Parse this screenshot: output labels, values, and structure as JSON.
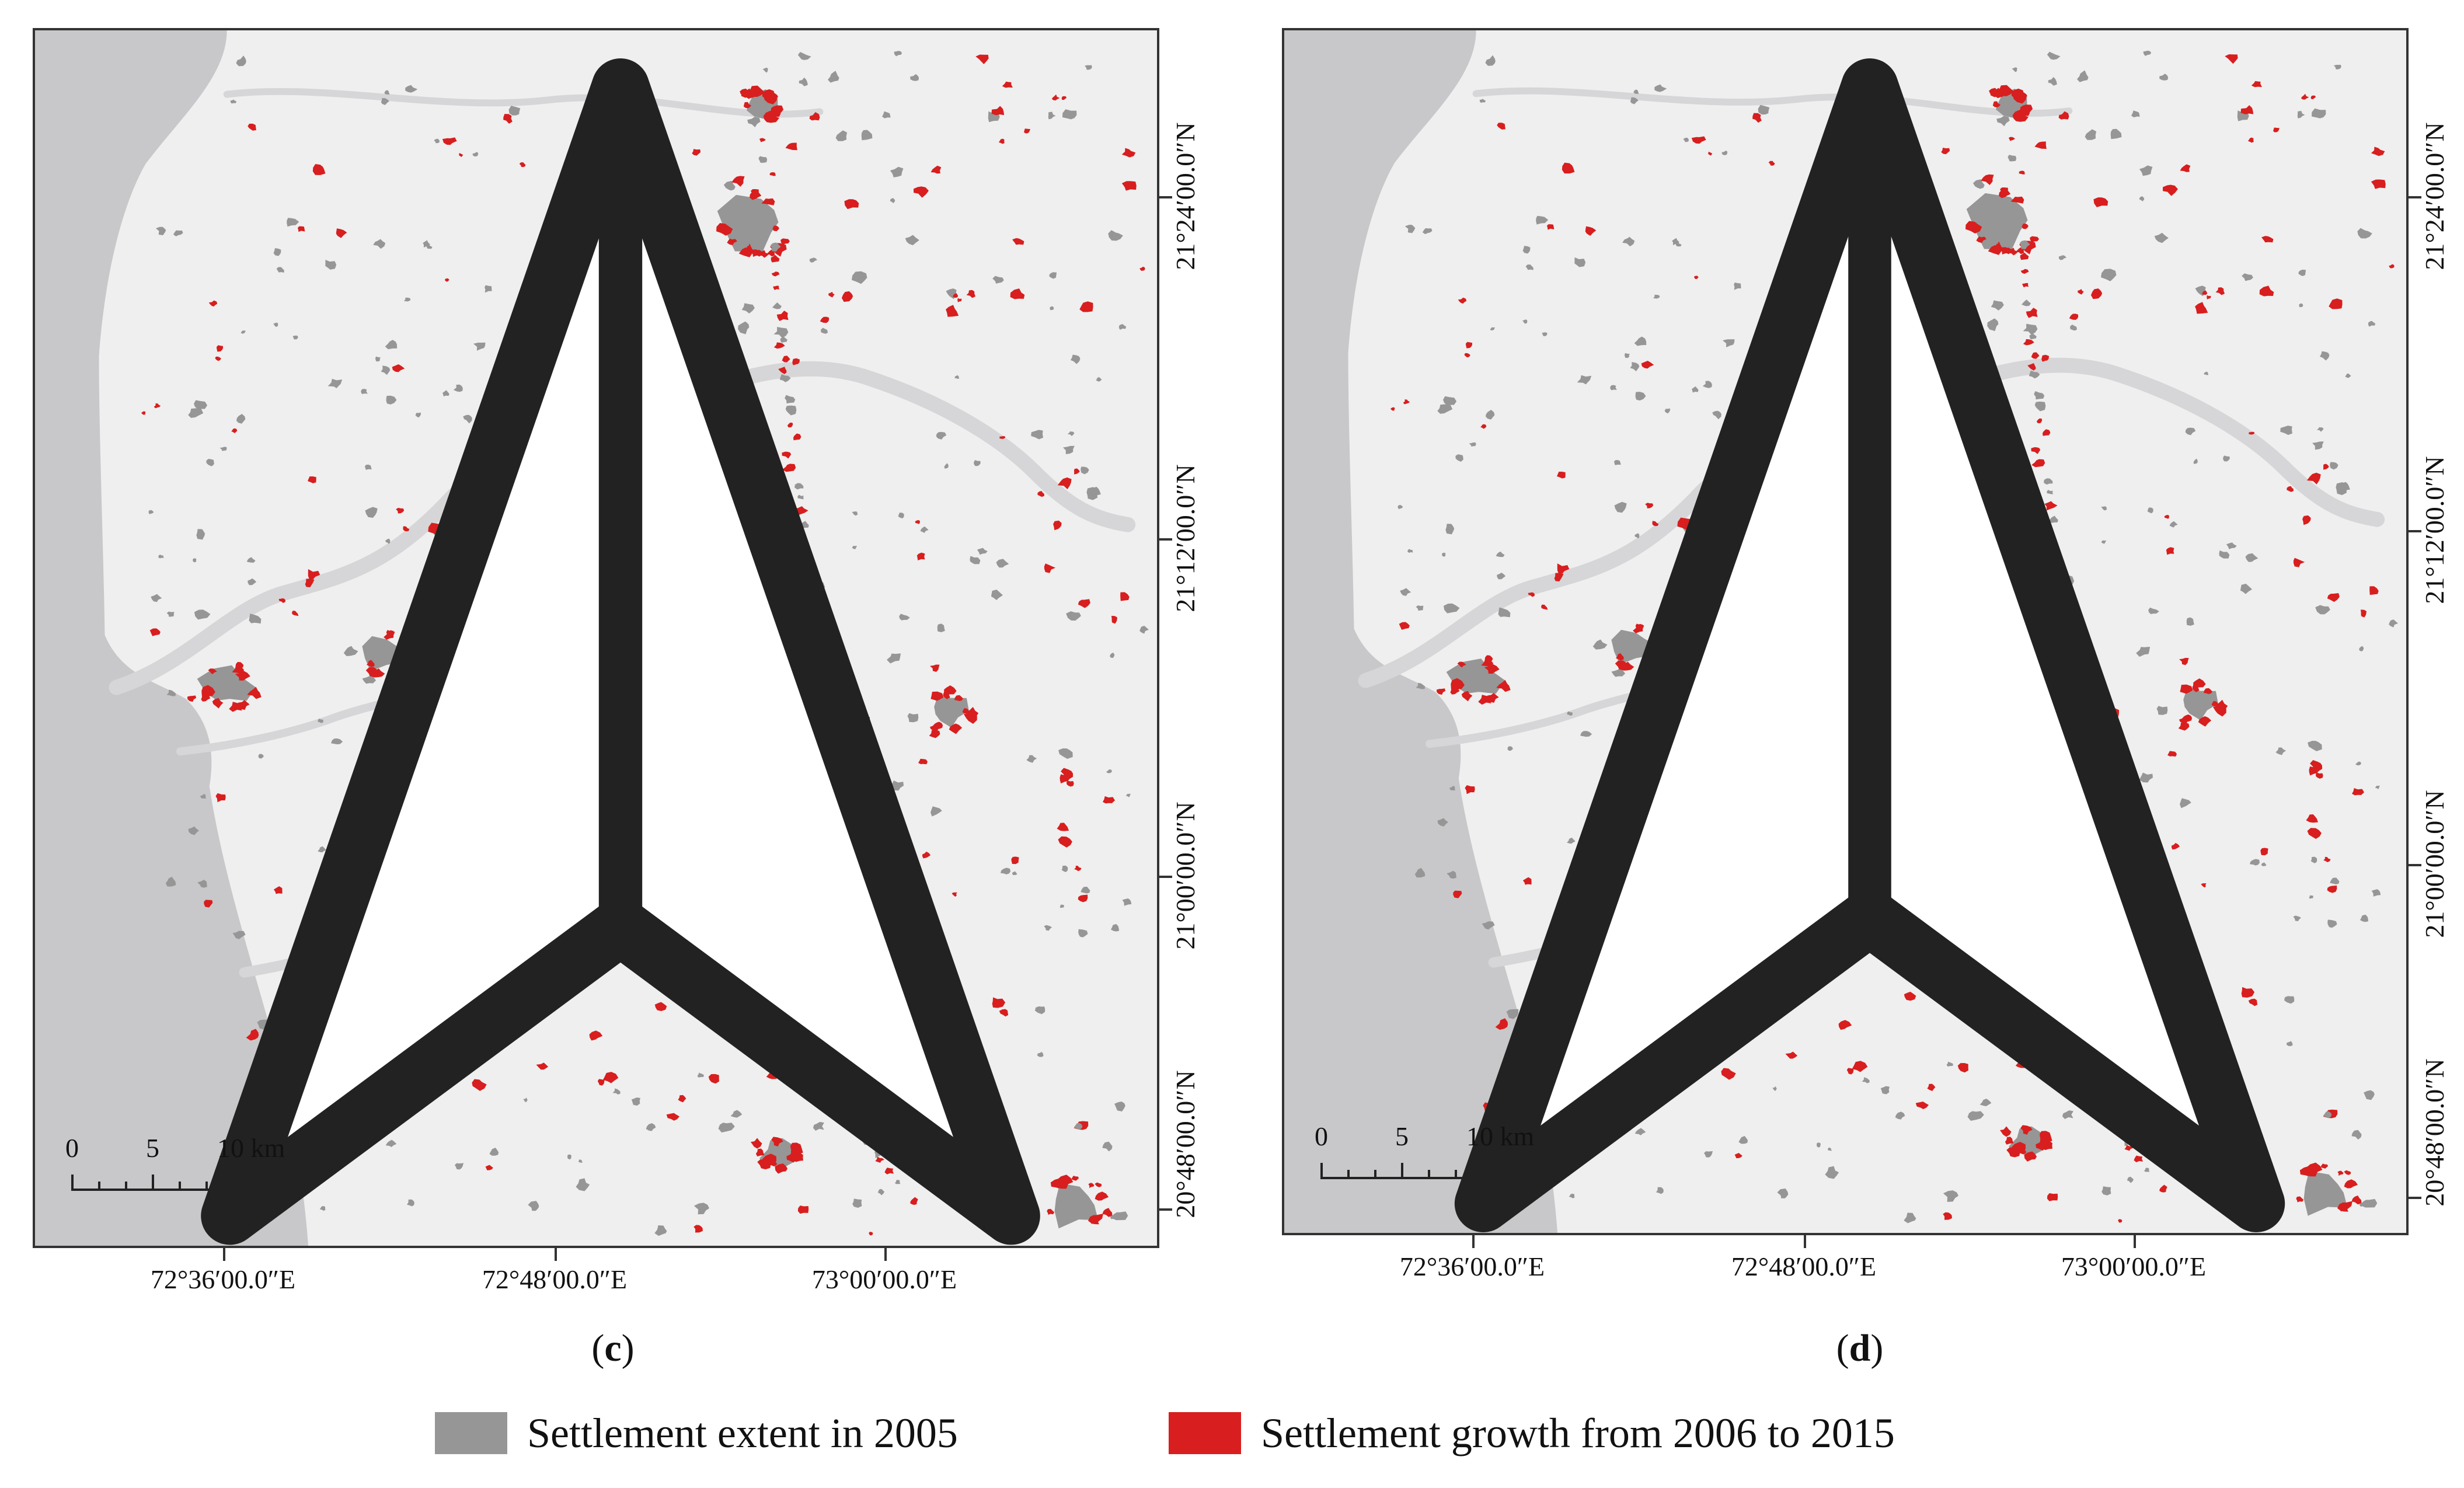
{
  "colors": {
    "land": "#efefef",
    "water": "#c8c8ca",
    "river": "#d6d6d8",
    "settlement_2005": "#969696",
    "growth_2006_2015": "#d81e1e",
    "frame": "#333333"
  },
  "panels": [
    {
      "letter": "c",
      "north_icon": "north-arrow-icon",
      "scale_bar": {
        "labels": [
          "0",
          "5",
          "10 km"
        ]
      },
      "longitude_labels": [
        "72°36′00.0″E",
        "72°48′00.0″E",
        "73°00′00.0″E"
      ],
      "latitude_labels": [
        "21°24′00.0″N",
        "21°12′00.0″N",
        "21°00′00.0″N",
        "20°48′00.0″N"
      ]
    },
    {
      "letter": "d",
      "north_icon": "north-arrow-icon",
      "scale_bar": {
        "labels": [
          "0",
          "5",
          "10 km"
        ]
      },
      "longitude_labels": [
        "72°36′00.0″E",
        "72°48′00.0″E",
        "73°00′00.0″E"
      ],
      "latitude_labels": [
        "21°24′00.0″N",
        "21°12′00.0″N",
        "21°00′00.0″N",
        "20°48′00.0″N"
      ]
    }
  ],
  "legend": [
    {
      "label": "Settlement extent in 2005",
      "color": "#969696"
    },
    {
      "label": "Settlement growth from 2006 to 2015",
      "color": "#d81e1e"
    }
  ]
}
